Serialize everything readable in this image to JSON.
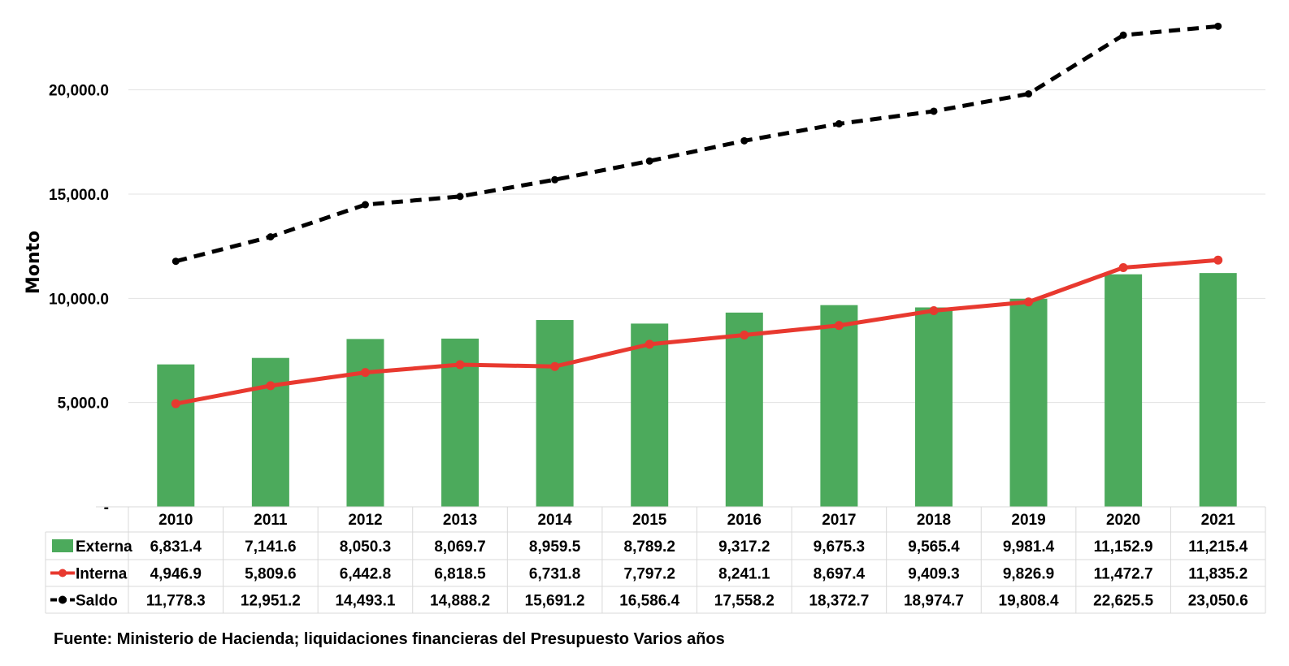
{
  "chart_data": {
    "type": "bar",
    "title": "",
    "xlabel": "",
    "ylabel": "Monto",
    "ylim": [
      0,
      24000
    ],
    "y_ticks": [
      "-",
      "5,000.0",
      "10,000.0",
      "15,000.0",
      "20,000.0"
    ],
    "y_tick_values": [
      0,
      5000,
      10000,
      15000,
      20000
    ],
    "grid": true,
    "legend_placement": "data table below chart",
    "categories": [
      "2010",
      "2011",
      "2012",
      "2013",
      "2014",
      "2015",
      "2016",
      "2017",
      "2018",
      "2019",
      "2020",
      "2021"
    ],
    "series": [
      {
        "name": "Externa",
        "type": "bar",
        "color": "#4caa5c",
        "values": [
          6831.4,
          7141.6,
          8050.3,
          8069.7,
          8959.5,
          8789.2,
          9317.2,
          9675.3,
          9565.4,
          9981.4,
          11152.9,
          11215.4
        ],
        "labels": [
          "6,831.4",
          "7,141.6",
          "8,050.3",
          "8,069.7",
          "8,959.5",
          "8,789.2",
          "9,317.2",
          "9,675.3",
          "9,565.4",
          "9,981.4",
          "11,152.9",
          "11,215.4"
        ]
      },
      {
        "name": "Interna",
        "type": "line",
        "color": "#e8392f",
        "values": [
          4946.9,
          5809.6,
          6442.8,
          6818.5,
          6731.8,
          7797.2,
          8241.1,
          8697.4,
          9409.3,
          9826.9,
          11472.7,
          11835.2
        ],
        "labels": [
          "4,946.9",
          "5,809.6",
          "6,442.8",
          "6,818.5",
          "6,731.8",
          "7,797.2",
          "8,241.1",
          "8,697.4",
          "9,409.3",
          "9,826.9",
          "11,472.7",
          "11,835.2"
        ]
      },
      {
        "name": "Saldo",
        "type": "line-dashed",
        "color": "#000000",
        "values": [
          11778.3,
          12951.2,
          14493.1,
          14888.2,
          15691.2,
          16586.4,
          17558.2,
          18372.7,
          18974.7,
          19808.4,
          22625.5,
          23050.6
        ],
        "labels": [
          "11,778.3",
          "12,951.2",
          "14,493.1",
          "14,888.2",
          "15,691.2",
          "16,586.4",
          "17,558.2",
          "18,372.7",
          "18,974.7",
          "19,808.4",
          "22,625.5",
          "23,050.6"
        ]
      }
    ]
  },
  "source_note": "Fuente: Ministerio de Hacienda; liquidaciones financieras del Presupuesto Varios años"
}
